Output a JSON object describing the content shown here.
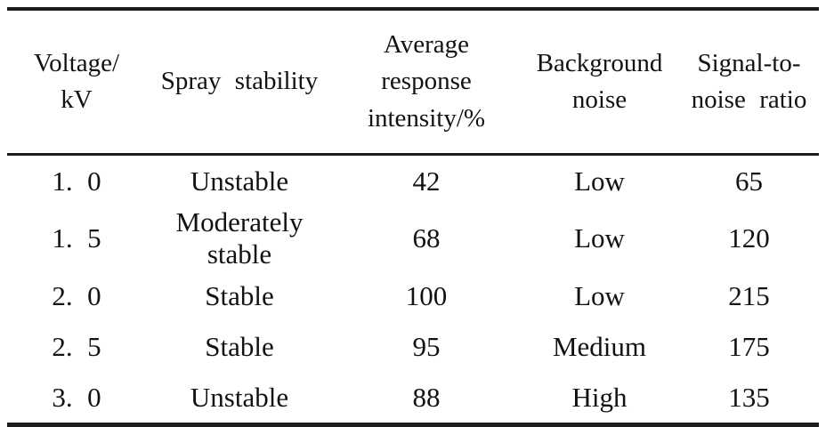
{
  "table": {
    "headers": [
      "Voltage/\nkV",
      "Spray stability",
      "Average\nresponse\nintensity/%",
      "Background\nnoise",
      "Signal-to-\nnoise ratio"
    ],
    "rows": [
      [
        "1. 0",
        "Unstable",
        "42",
        "Low",
        "65"
      ],
      [
        "1. 5",
        "Moderately stable",
        "68",
        "Low",
        "120"
      ],
      [
        "2. 0",
        "Stable",
        "100",
        "Low",
        "215"
      ],
      [
        "2. 5",
        "Stable",
        "95",
        "Medium",
        "175"
      ],
      [
        "3. 0",
        "Unstable",
        "88",
        "High",
        "135"
      ]
    ],
    "colors": {
      "rule": "#1c1c1c",
      "text": "#121212",
      "background": "#ffffff"
    }
  }
}
